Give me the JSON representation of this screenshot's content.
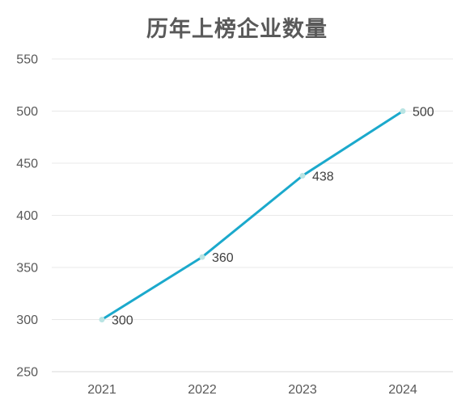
{
  "chart_data": {
    "type": "line",
    "title": "历年上榜企业数量",
    "xlabel": "",
    "ylabel": "",
    "categories": [
      "2021",
      "2022",
      "2023",
      "2024"
    ],
    "series": [
      {
        "values": [
          300,
          360,
          438,
          500
        ],
        "color": "#1ba9cc",
        "marker_color": "#b9e4e3"
      }
    ],
    "ylim": [
      250,
      550
    ],
    "yticks": [
      250,
      300,
      350,
      400,
      450,
      500,
      550
    ],
    "grid": true,
    "data_labels": true,
    "legend": "none"
  }
}
